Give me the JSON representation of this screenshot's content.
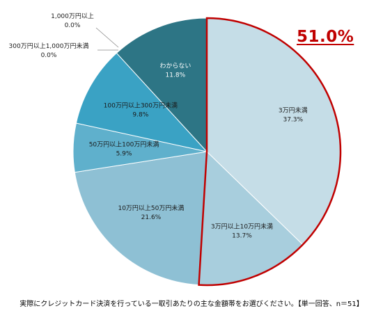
{
  "chart_data": {
    "type": "pie",
    "title": "",
    "slices": [
      {
        "label": "3万円未満",
        "value": 37.3,
        "value_label": "37.3%",
        "color": "#c5dde7"
      },
      {
        "label": "3万円以上10万円未満",
        "value": 13.7,
        "value_label": "13.7%",
        "color": "#a8cedd"
      },
      {
        "label": "10万円以上50万円未満",
        "value": 21.6,
        "value_label": "21.6%",
        "color": "#8ec0d4"
      },
      {
        "label": "50万円以上100万円未満",
        "value": 5.9,
        "value_label": "5.9%",
        "color": "#5fb0cc"
      },
      {
        "label": "100万円以上300万円未満",
        "value": 9.8,
        "value_label": "9.8%",
        "color": "#3aa2c4"
      },
      {
        "label": "300万円以上1,000万円未満",
        "value": 0.0,
        "value_label": "0.0%",
        "color": "#2a7f9a"
      },
      {
        "label": "1,000万円以上",
        "value": 0.0,
        "value_label": "0.0%",
        "color": "#2a7f9a"
      },
      {
        "label": "わからない",
        "value": 11.8,
        "value_label": "11.8%",
        "color": "#2d7585"
      }
    ],
    "highlight": {
      "text": "51.0%",
      "color": "#c00000",
      "value": 51.0
    },
    "caption": "実際にクレジットカード決済を行っている一取引あたりの主な金額帯をお選びください。【単一回答、n＝51】"
  }
}
